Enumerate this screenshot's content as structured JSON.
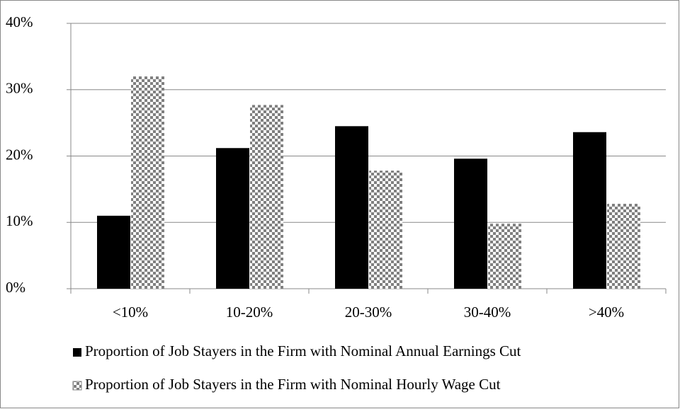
{
  "chart_data": {
    "type": "bar",
    "categories": [
      "<10%",
      "10-20%",
      "20-30%",
      "30-40%",
      ">40%"
    ],
    "series": [
      {
        "name": "Proportion of Job Stayers in the Firm with Nominal Annual Earnings Cut",
        "color": "#000000",
        "values": [
          11,
          21.2,
          24.5,
          19.6,
          23.6
        ]
      },
      {
        "name": "Proportion of Job Stayers in the Firm with Nominal Hourly Wage Cut",
        "color": "#808080",
        "pattern": "checker",
        "values": [
          32,
          27.7,
          17.8,
          9.8,
          12.8
        ]
      }
    ],
    "ylim": [
      0,
      40
    ],
    "yticks": [
      {
        "value": 0,
        "label": "0%"
      },
      {
        "value": 10,
        "label": "10%"
      },
      {
        "value": 20,
        "label": "20%"
      },
      {
        "value": 30,
        "label": "30%"
      },
      {
        "value": 40,
        "label": "40%"
      }
    ],
    "grid": true,
    "legend": "bottom"
  }
}
